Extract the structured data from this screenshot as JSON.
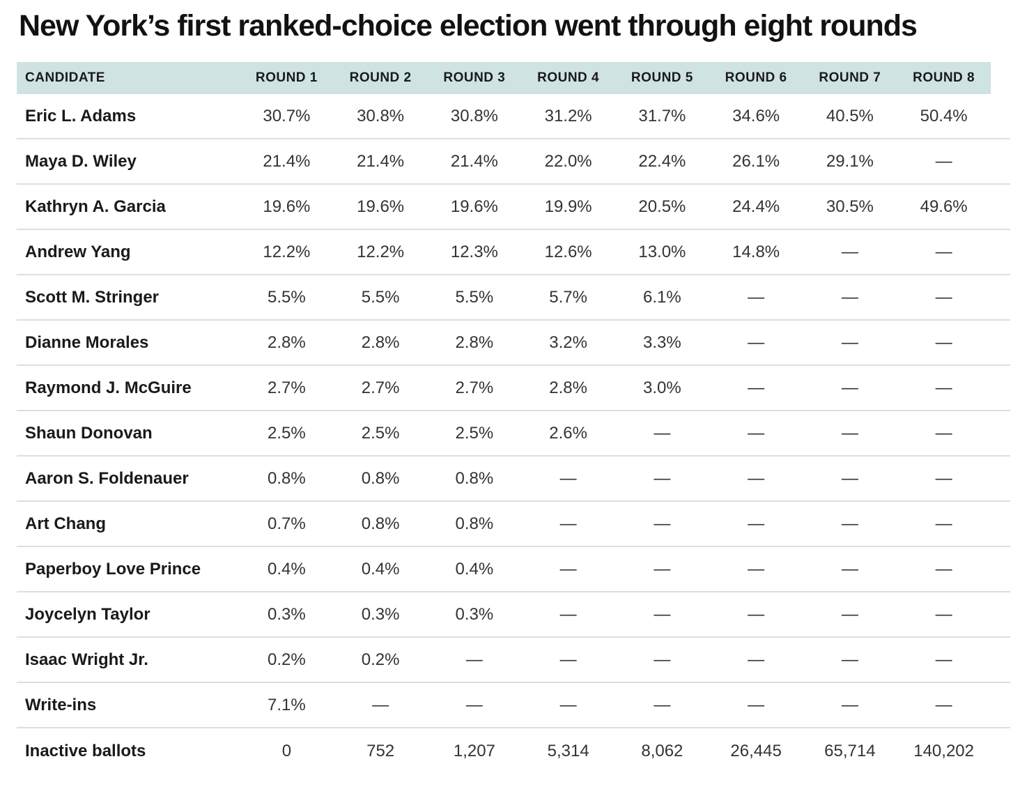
{
  "title": "New York’s first ranked-choice election went through eight rounds",
  "colors": {
    "header_bg": "#d0e3e3",
    "title_text": "#121212",
    "candidate_text": "#1a1a1a",
    "value_text": "#333333",
    "divider": "#dedede"
  },
  "table": {
    "columns": [
      "CANDIDATE",
      "ROUND 1",
      "ROUND 2",
      "ROUND 3",
      "ROUND 4",
      "ROUND 5",
      "ROUND 6",
      "ROUND 7",
      "ROUND 8"
    ],
    "rows": [
      {
        "candidate": "Eric L. Adams",
        "values": [
          "30.7%",
          "30.8%",
          "30.8%",
          "31.2%",
          "31.7%",
          "34.6%",
          "40.5%",
          "50.4%"
        ]
      },
      {
        "candidate": "Maya D. Wiley",
        "values": [
          "21.4%",
          "21.4%",
          "21.4%",
          "22.0%",
          "22.4%",
          "26.1%",
          "29.1%",
          "—"
        ]
      },
      {
        "candidate": "Kathryn A. Garcia",
        "values": [
          "19.6%",
          "19.6%",
          "19.6%",
          "19.9%",
          "20.5%",
          "24.4%",
          "30.5%",
          "49.6%"
        ]
      },
      {
        "candidate": "Andrew Yang",
        "values": [
          "12.2%",
          "12.2%",
          "12.3%",
          "12.6%",
          "13.0%",
          "14.8%",
          "—",
          "—"
        ]
      },
      {
        "candidate": "Scott M. Stringer",
        "values": [
          "5.5%",
          "5.5%",
          "5.5%",
          "5.7%",
          "6.1%",
          "—",
          "—",
          "—"
        ]
      },
      {
        "candidate": "Dianne Morales",
        "values": [
          "2.8%",
          "2.8%",
          "2.8%",
          "3.2%",
          "3.3%",
          "—",
          "—",
          "—"
        ]
      },
      {
        "candidate": "Raymond J. McGuire",
        "values": [
          "2.7%",
          "2.7%",
          "2.7%",
          "2.8%",
          "3.0%",
          "—",
          "—",
          "—"
        ]
      },
      {
        "candidate": "Shaun Donovan",
        "values": [
          "2.5%",
          "2.5%",
          "2.5%",
          "2.6%",
          "—",
          "—",
          "—",
          "—"
        ]
      },
      {
        "candidate": "Aaron S. Foldenauer",
        "values": [
          "0.8%",
          "0.8%",
          "0.8%",
          "—",
          "—",
          "—",
          "—",
          "—"
        ]
      },
      {
        "candidate": "Art Chang",
        "values": [
          "0.7%",
          "0.8%",
          "0.8%",
          "—",
          "—",
          "—",
          "—",
          "—"
        ]
      },
      {
        "candidate": "Paperboy Love Prince",
        "values": [
          "0.4%",
          "0.4%",
          "0.4%",
          "—",
          "—",
          "—",
          "—",
          "—"
        ]
      },
      {
        "candidate": "Joycelyn Taylor",
        "values": [
          "0.3%",
          "0.3%",
          "0.3%",
          "—",
          "—",
          "—",
          "—",
          "—"
        ]
      },
      {
        "candidate": "Isaac Wright Jr.",
        "values": [
          "0.2%",
          "0.2%",
          "—",
          "—",
          "—",
          "—",
          "—",
          "—"
        ]
      },
      {
        "candidate": "Write-ins",
        "values": [
          "7.1%",
          "—",
          "—",
          "—",
          "—",
          "—",
          "—",
          "—"
        ]
      },
      {
        "candidate": "Inactive ballots",
        "values": [
          "0",
          "752",
          "1,207",
          "5,314",
          "8,062",
          "26,445",
          "65,714",
          "140,202"
        ]
      }
    ]
  },
  "chart_data": {
    "type": "table",
    "title": "New York’s first ranked-choice election went through eight rounds",
    "categories": [
      "ROUND 1",
      "ROUND 2",
      "ROUND 3",
      "ROUND 4",
      "ROUND 5",
      "ROUND 6",
      "ROUND 7",
      "ROUND 8"
    ],
    "series": [
      {
        "name": "Eric L. Adams",
        "unit": "percent",
        "values": [
          30.7,
          30.8,
          30.8,
          31.2,
          31.7,
          34.6,
          40.5,
          50.4
        ]
      },
      {
        "name": "Maya D. Wiley",
        "unit": "percent",
        "values": [
          21.4,
          21.4,
          21.4,
          22.0,
          22.4,
          26.1,
          29.1,
          null
        ]
      },
      {
        "name": "Kathryn A. Garcia",
        "unit": "percent",
        "values": [
          19.6,
          19.6,
          19.6,
          19.9,
          20.5,
          24.4,
          30.5,
          49.6
        ]
      },
      {
        "name": "Andrew Yang",
        "unit": "percent",
        "values": [
          12.2,
          12.2,
          12.3,
          12.6,
          13.0,
          14.8,
          null,
          null
        ]
      },
      {
        "name": "Scott M. Stringer",
        "unit": "percent",
        "values": [
          5.5,
          5.5,
          5.5,
          5.7,
          6.1,
          null,
          null,
          null
        ]
      },
      {
        "name": "Dianne Morales",
        "unit": "percent",
        "values": [
          2.8,
          2.8,
          2.8,
          3.2,
          3.3,
          null,
          null,
          null
        ]
      },
      {
        "name": "Raymond J. McGuire",
        "unit": "percent",
        "values": [
          2.7,
          2.7,
          2.7,
          2.8,
          3.0,
          null,
          null,
          null
        ]
      },
      {
        "name": "Shaun Donovan",
        "unit": "percent",
        "values": [
          2.5,
          2.5,
          2.5,
          2.6,
          null,
          null,
          null,
          null
        ]
      },
      {
        "name": "Aaron S. Foldenauer",
        "unit": "percent",
        "values": [
          0.8,
          0.8,
          0.8,
          null,
          null,
          null,
          null,
          null
        ]
      },
      {
        "name": "Art Chang",
        "unit": "percent",
        "values": [
          0.7,
          0.8,
          0.8,
          null,
          null,
          null,
          null,
          null
        ]
      },
      {
        "name": "Paperboy Love Prince",
        "unit": "percent",
        "values": [
          0.4,
          0.4,
          0.4,
          null,
          null,
          null,
          null,
          null
        ]
      },
      {
        "name": "Joycelyn Taylor",
        "unit": "percent",
        "values": [
          0.3,
          0.3,
          0.3,
          null,
          null,
          null,
          null,
          null
        ]
      },
      {
        "name": "Isaac Wright Jr.",
        "unit": "percent",
        "values": [
          0.2,
          0.2,
          null,
          null,
          null,
          null,
          null,
          null
        ]
      },
      {
        "name": "Write-ins",
        "unit": "percent",
        "values": [
          7.1,
          null,
          null,
          null,
          null,
          null,
          null,
          null
        ]
      },
      {
        "name": "Inactive ballots",
        "unit": "count",
        "values": [
          0,
          752,
          1207,
          5314,
          8062,
          26445,
          65714,
          140202
        ]
      }
    ],
    "layout": {
      "first_column_header": "CANDIDATE",
      "null_display": "—",
      "header_background": "#d0e3e3"
    }
  }
}
